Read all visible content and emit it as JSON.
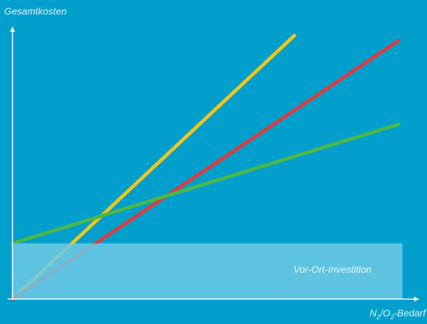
{
  "chart_data": {
    "type": "line",
    "ylabel": "Gesamtkosten",
    "xlabel": {
      "n": "N",
      "sub1": "2",
      "mid": "/O",
      "sub2": "2",
      "rest": "-Bedarf"
    },
    "x_range": [
      0,
      1
    ],
    "y_range": [
      0,
      1
    ],
    "band": {
      "label": "Vor-Ort-Investition",
      "y": 0.22,
      "x_end": 1.01,
      "color": "#6ec9e4"
    },
    "series": [
      {
        "color": "#f5c518",
        "points": [
          [
            0,
            0
          ],
          [
            0.73,
            1.04
          ]
        ]
      },
      {
        "color": "#e23b3b",
        "points": [
          [
            0,
            0
          ],
          [
            1,
            1.02
          ]
        ]
      },
      {
        "color": "#4db847",
        "points": [
          [
            0,
            0.22
          ],
          [
            1,
            0.69
          ]
        ]
      }
    ],
    "axis_color": "#ffffff"
  }
}
